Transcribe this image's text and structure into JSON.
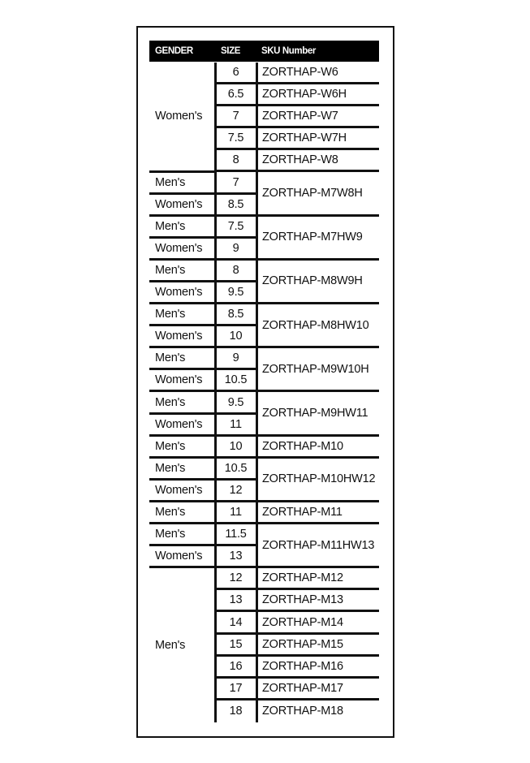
{
  "header": {
    "gender": "GENDER",
    "size": "SIZE",
    "sku": "SKU Number"
  },
  "groups": [
    {
      "genders": [
        {
          "label": "Women's",
          "span": 5
        }
      ],
      "sizes": [
        "6",
        "6.5",
        "7",
        "7.5",
        "8"
      ],
      "skus": [
        {
          "label": "ZORTHAP-W6",
          "span": 1
        },
        {
          "label": "ZORTHAP-W6H",
          "span": 1
        },
        {
          "label": "ZORTHAP-W7",
          "span": 1
        },
        {
          "label": "ZORTHAP-W7H",
          "span": 1
        },
        {
          "label": "ZORTHAP-W8",
          "span": 1
        }
      ]
    },
    {
      "genders": [
        {
          "label": "Men's",
          "span": 1
        },
        {
          "label": "Women's",
          "span": 1
        }
      ],
      "sizes": [
        "7",
        "8.5"
      ],
      "skus": [
        {
          "label": "ZORTHAP-M7W8H",
          "span": 2
        }
      ]
    },
    {
      "genders": [
        {
          "label": "Men's",
          "span": 1
        },
        {
          "label": "Women's",
          "span": 1
        }
      ],
      "sizes": [
        "7.5",
        "9"
      ],
      "skus": [
        {
          "label": "ZORTHAP-M7HW9",
          "span": 2
        }
      ]
    },
    {
      "genders": [
        {
          "label": "Men's",
          "span": 1
        },
        {
          "label": "Women's",
          "span": 1
        }
      ],
      "sizes": [
        "8",
        "9.5"
      ],
      "skus": [
        {
          "label": "ZORTHAP-M8W9H",
          "span": 2
        }
      ]
    },
    {
      "genders": [
        {
          "label": "Men's",
          "span": 1
        },
        {
          "label": "Women's",
          "span": 1
        }
      ],
      "sizes": [
        "8.5",
        "10"
      ],
      "skus": [
        {
          "label": "ZORTHAP-M8HW10",
          "span": 2
        }
      ]
    },
    {
      "genders": [
        {
          "label": "Men's",
          "span": 1
        },
        {
          "label": "Women's",
          "span": 1
        }
      ],
      "sizes": [
        "9",
        "10.5"
      ],
      "skus": [
        {
          "label": "ZORTHAP-M9W10H",
          "span": 2
        }
      ]
    },
    {
      "genders": [
        {
          "label": "Men's",
          "span": 1
        },
        {
          "label": "Women's",
          "span": 1
        }
      ],
      "sizes": [
        "9.5",
        "11"
      ],
      "skus": [
        {
          "label": "ZORTHAP-M9HW11",
          "span": 2
        }
      ]
    },
    {
      "genders": [
        {
          "label": "Men's",
          "span": 1
        }
      ],
      "sizes": [
        "10"
      ],
      "skus": [
        {
          "label": "ZORTHAP-M10",
          "span": 1
        }
      ]
    },
    {
      "genders": [
        {
          "label": "Men's",
          "span": 1
        },
        {
          "label": "Women's",
          "span": 1
        }
      ],
      "sizes": [
        "10.5",
        "12"
      ],
      "skus": [
        {
          "label": "ZORTHAP-M10HW12",
          "span": 2
        }
      ]
    },
    {
      "genders": [
        {
          "label": "Men's",
          "span": 1
        }
      ],
      "sizes": [
        "11"
      ],
      "skus": [
        {
          "label": "ZORTHAP-M11",
          "span": 1
        }
      ]
    },
    {
      "genders": [
        {
          "label": "Men's",
          "span": 1
        },
        {
          "label": "Women's",
          "span": 1
        }
      ],
      "sizes": [
        "11.5",
        "13"
      ],
      "skus": [
        {
          "label": "ZORTHAP-M11HW13",
          "span": 2
        }
      ]
    },
    {
      "genders": [
        {
          "label": "Men's",
          "span": 7
        }
      ],
      "sizes": [
        "12",
        "13",
        "14",
        "15",
        "16",
        "17",
        "18"
      ],
      "skus": [
        {
          "label": "ZORTHAP-M12",
          "span": 1
        },
        {
          "label": "ZORTHAP-M13",
          "span": 1
        },
        {
          "label": "ZORTHAP-M14",
          "span": 1
        },
        {
          "label": "ZORTHAP-M15",
          "span": 1
        },
        {
          "label": "ZORTHAP-M16",
          "span": 1
        },
        {
          "label": "ZORTHAP-M17",
          "span": 1
        },
        {
          "label": "ZORTHAP-M18",
          "span": 1
        }
      ]
    }
  ]
}
